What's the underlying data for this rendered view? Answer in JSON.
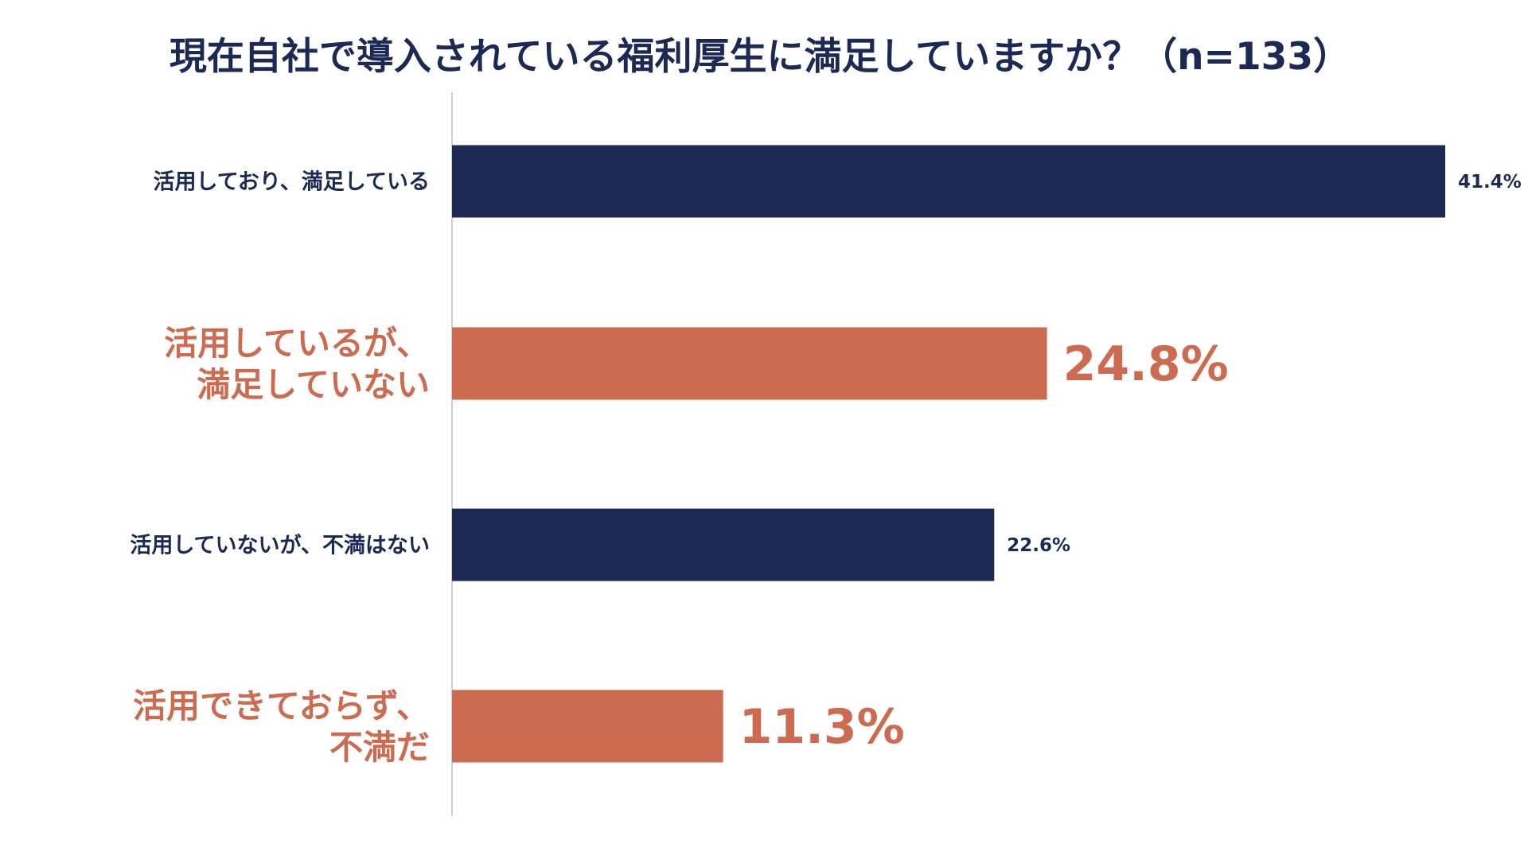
{
  "colors": {
    "navy": "#1b2954",
    "orange": "#cc6b4f",
    "axis": "#d0d0d0",
    "background": "#ffffff"
  },
  "chart_data": {
    "type": "bar",
    "orientation": "horizontal",
    "title": "現在自社で導入されている福利厚生に満足していますか？（n=133）",
    "xlabel": "",
    "ylabel": "",
    "unit": "%",
    "xlim": [
      0,
      41.4
    ],
    "grid": false,
    "legend": "none",
    "categories": [
      {
        "label_lines": [
          "活用しており、満足している"
        ],
        "value": 41.4,
        "value_label": "41.4%",
        "color": "#1b2954",
        "emphasis": false
      },
      {
        "label_lines": [
          "活用しているが、",
          "満足していない"
        ],
        "value": 24.8,
        "value_label": "24.8%",
        "color": "#cc6b4f",
        "emphasis": true
      },
      {
        "label_lines": [
          "活用していないが、不満はない"
        ],
        "value": 22.6,
        "value_label": "22.6%",
        "color": "#1b2954",
        "emphasis": false
      },
      {
        "label_lines": [
          "活用できておらず、",
          "不満だ"
        ],
        "value": 11.3,
        "value_label": "11.3%",
        "color": "#cc6b4f",
        "emphasis": true
      }
    ]
  }
}
